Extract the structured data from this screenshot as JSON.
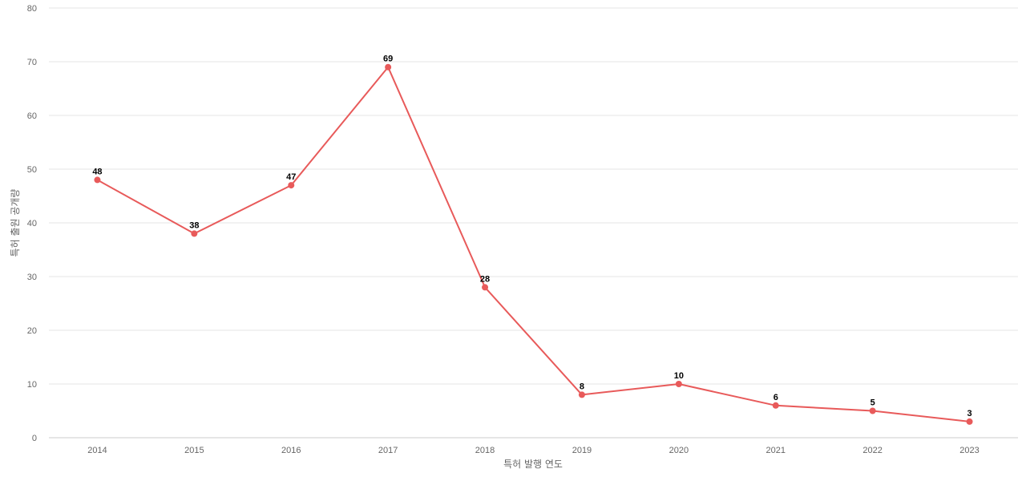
{
  "chart_data": {
    "type": "line",
    "title": "",
    "xlabel": "특허 발행 연도",
    "ylabel": "특허 출원 공개량",
    "categories": [
      "2014",
      "2015",
      "2016",
      "2017",
      "2018",
      "2019",
      "2020",
      "2021",
      "2022",
      "2023"
    ],
    "series": [
      {
        "values": [
          48,
          38,
          47,
          69,
          28,
          8,
          10,
          6,
          5,
          3
        ],
        "color": "#e85a5a"
      }
    ],
    "ylim": [
      0,
      80
    ],
    "yticks": [
      0,
      10,
      20,
      30,
      40,
      50,
      60,
      70,
      80
    ],
    "grid": true,
    "legend": "none",
    "data_labels": true
  }
}
